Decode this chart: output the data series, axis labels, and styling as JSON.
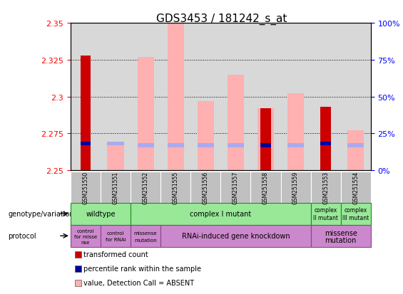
{
  "title": "GDS3453 / 181242_s_at",
  "samples": [
    "GSM251550",
    "GSM251551",
    "GSM251552",
    "GSM251555",
    "GSM251556",
    "GSM251557",
    "GSM251558",
    "GSM251559",
    "GSM251553",
    "GSM251554"
  ],
  "ylim": [
    2.25,
    2.35
  ],
  "yticks": [
    2.25,
    2.275,
    2.3,
    2.325,
    2.35
  ],
  "y2ticks": [
    0,
    25,
    50,
    75,
    100
  ],
  "y2lim": [
    0,
    100
  ],
  "red_bars": [
    2.328,
    0,
    0,
    0,
    0,
    0,
    2.292,
    0,
    2.293,
    0
  ],
  "pink_bars": [
    0,
    2.268,
    2.327,
    2.35,
    2.297,
    2.315,
    2.292,
    2.302,
    0,
    2.277
  ],
  "blue_markers": [
    2.268,
    0,
    0,
    0,
    0,
    0,
    2.267,
    0,
    2.268,
    0
  ],
  "lightblue_markers": [
    0,
    2.268,
    2.267,
    2.267,
    2.267,
    2.267,
    0,
    2.267,
    0,
    2.267
  ],
  "has_red": [
    true,
    false,
    false,
    false,
    false,
    false,
    true,
    false,
    true,
    false
  ],
  "has_pink": [
    false,
    true,
    true,
    true,
    true,
    true,
    true,
    true,
    false,
    true
  ],
  "has_blue": [
    true,
    false,
    false,
    false,
    false,
    false,
    true,
    false,
    true,
    false
  ],
  "has_lightblue": [
    false,
    true,
    true,
    true,
    true,
    true,
    false,
    true,
    false,
    true
  ],
  "bg_color": "#ffffff",
  "plot_bg": "#d8d8d8",
  "green_light": "#98e898",
  "green_dark": "#228822",
  "purple": "#cc88cc",
  "purple_dark": "#884488"
}
